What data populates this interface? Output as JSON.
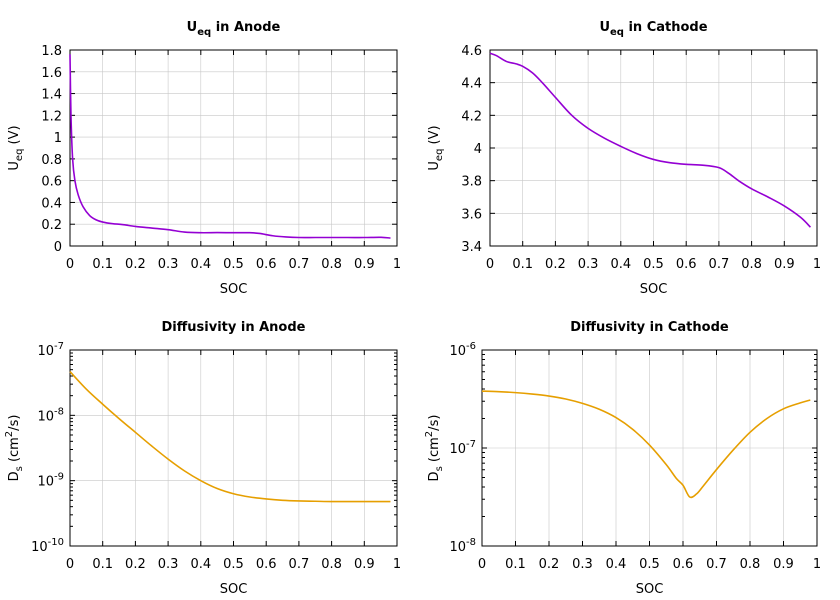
{
  "colors": {
    "ueq": "#9400d3",
    "diffusivity": "#e69f00"
  },
  "chart_data": [
    {
      "type": "line",
      "title": "U",
      "title_sub": "eq",
      "title_rest": " in Anode",
      "xlabel": "SOC",
      "ylabel_main": "U",
      "ylabel_sub": "eq",
      "ylabel_rest": " (V)",
      "xlim": [
        0,
        1
      ],
      "ylim": [
        0,
        1.8
      ],
      "log": false,
      "grid": true,
      "xticks": [
        "0",
        "0.1",
        "0.2",
        "0.3",
        "0.4",
        "0.5",
        "0.6",
        "0.7",
        "0.8",
        "0.9",
        "1"
      ],
      "yticks": [
        "0",
        "0.2",
        "0.4",
        "0.6",
        "0.8",
        "1",
        "1.2",
        "1.4",
        "1.6",
        "1.8"
      ],
      "series": [
        {
          "color": "ueq",
          "x": [
            0.0,
            0.003,
            0.008,
            0.015,
            0.025,
            0.04,
            0.06,
            0.08,
            0.1,
            0.13,
            0.16,
            0.2,
            0.25,
            0.3,
            0.35,
            0.4,
            0.45,
            0.5,
            0.55,
            0.58,
            0.62,
            0.66,
            0.7,
            0.75,
            0.8,
            0.85,
            0.9,
            0.95,
            0.98
          ],
          "y": [
            1.76,
            1.2,
            0.8,
            0.6,
            0.47,
            0.36,
            0.28,
            0.24,
            0.22,
            0.205,
            0.197,
            0.18,
            0.165,
            0.15,
            0.128,
            0.122,
            0.123,
            0.122,
            0.122,
            0.115,
            0.094,
            0.083,
            0.078,
            0.078,
            0.078,
            0.078,
            0.078,
            0.08,
            0.073
          ]
        }
      ]
    },
    {
      "type": "line",
      "title": "U",
      "title_sub": "eq",
      "title_rest": " in Cathode",
      "xlabel": "SOC",
      "ylabel_main": "U",
      "ylabel_sub": "eq",
      "ylabel_rest": " (V)",
      "xlim": [
        0,
        1
      ],
      "ylim": [
        3.4,
        4.6
      ],
      "log": false,
      "grid": true,
      "xticks": [
        "0",
        "0.1",
        "0.2",
        "0.3",
        "0.4",
        "0.5",
        "0.6",
        "0.7",
        "0.8",
        "0.9",
        "1"
      ],
      "yticks": [
        "3.4",
        "3.6",
        "3.8",
        "4",
        "4.2",
        "4.4",
        "4.6"
      ],
      "series": [
        {
          "color": "ueq",
          "x": [
            0.0,
            0.02,
            0.05,
            0.08,
            0.1,
            0.13,
            0.16,
            0.2,
            0.25,
            0.3,
            0.35,
            0.4,
            0.45,
            0.5,
            0.55,
            0.6,
            0.65,
            0.7,
            0.73,
            0.76,
            0.8,
            0.85,
            0.9,
            0.95,
            0.98
          ],
          "y": [
            4.58,
            4.565,
            4.53,
            4.515,
            4.5,
            4.46,
            4.4,
            4.31,
            4.2,
            4.12,
            4.06,
            4.01,
            3.965,
            3.93,
            3.91,
            3.9,
            3.895,
            3.88,
            3.845,
            3.8,
            3.75,
            3.7,
            3.645,
            3.575,
            3.515
          ]
        }
      ]
    },
    {
      "type": "line",
      "title": "Diffusivity in Anode",
      "xlabel": "SOC",
      "ylabel_main": "D",
      "ylabel_sub": "s",
      "ylabel_rest": " (cm",
      "ylabel_sup": "2",
      "ylabel_end": "/s)",
      "xlim": [
        0,
        1
      ],
      "ylim_log10": [
        -10,
        -7
      ],
      "log": true,
      "grid": true,
      "xticks": [
        "0",
        "0.1",
        "0.2",
        "0.3",
        "0.4",
        "0.5",
        "0.6",
        "0.7",
        "0.8",
        "0.9",
        "1"
      ],
      "yticks": [
        {
          "base": "10",
          "exp": "-10"
        },
        {
          "base": "10",
          "exp": "-9"
        },
        {
          "base": "10",
          "exp": "-8"
        },
        {
          "base": "10",
          "exp": "-7"
        }
      ],
      "series": [
        {
          "color": "diffusivity",
          "x": [
            0.0,
            0.05,
            0.1,
            0.15,
            0.2,
            0.25,
            0.3,
            0.35,
            0.4,
            0.45,
            0.5,
            0.55,
            0.6,
            0.65,
            0.7,
            0.75,
            0.8,
            0.85,
            0.9,
            0.95,
            0.98
          ],
          "y_log10": [
            -7.33,
            -7.6,
            -7.83,
            -8.05,
            -8.26,
            -8.47,
            -8.67,
            -8.85,
            -9.0,
            -9.12,
            -9.2,
            -9.25,
            -9.28,
            -9.3,
            -9.31,
            -9.315,
            -9.32,
            -9.32,
            -9.32,
            -9.32,
            -9.32
          ]
        }
      ]
    },
    {
      "type": "line",
      "title": "Diffusivity in Cathode",
      "xlabel": "SOC",
      "ylabel_main": "D",
      "ylabel_sub": "s",
      "ylabel_rest": " (cm",
      "ylabel_sup": "2",
      "ylabel_end": "/s)",
      "xlim": [
        0,
        1
      ],
      "ylim_log10": [
        -8,
        -6
      ],
      "log": true,
      "grid": true,
      "xticks": [
        "0",
        "0.1",
        "0.2",
        "0.3",
        "0.4",
        "0.5",
        "0.6",
        "0.7",
        "0.8",
        "0.9",
        "1"
      ],
      "yticks": [
        {
          "base": "10",
          "exp": "-8"
        },
        {
          "base": "10",
          "exp": "-7"
        },
        {
          "base": "10",
          "exp": "-6"
        }
      ],
      "series": [
        {
          "color": "diffusivity",
          "x": [
            0.0,
            0.05,
            0.1,
            0.15,
            0.2,
            0.25,
            0.3,
            0.35,
            0.4,
            0.45,
            0.5,
            0.55,
            0.58,
            0.6,
            0.62,
            0.64,
            0.66,
            0.7,
            0.75,
            0.8,
            0.85,
            0.9,
            0.95,
            0.98
          ],
          "y_log10": [
            -6.42,
            -6.425,
            -6.435,
            -6.45,
            -6.47,
            -6.5,
            -6.545,
            -6.605,
            -6.69,
            -6.81,
            -6.97,
            -7.17,
            -7.31,
            -7.38,
            -7.5,
            -7.47,
            -7.39,
            -7.22,
            -7.02,
            -6.84,
            -6.7,
            -6.6,
            -6.54,
            -6.51
          ]
        }
      ]
    }
  ]
}
